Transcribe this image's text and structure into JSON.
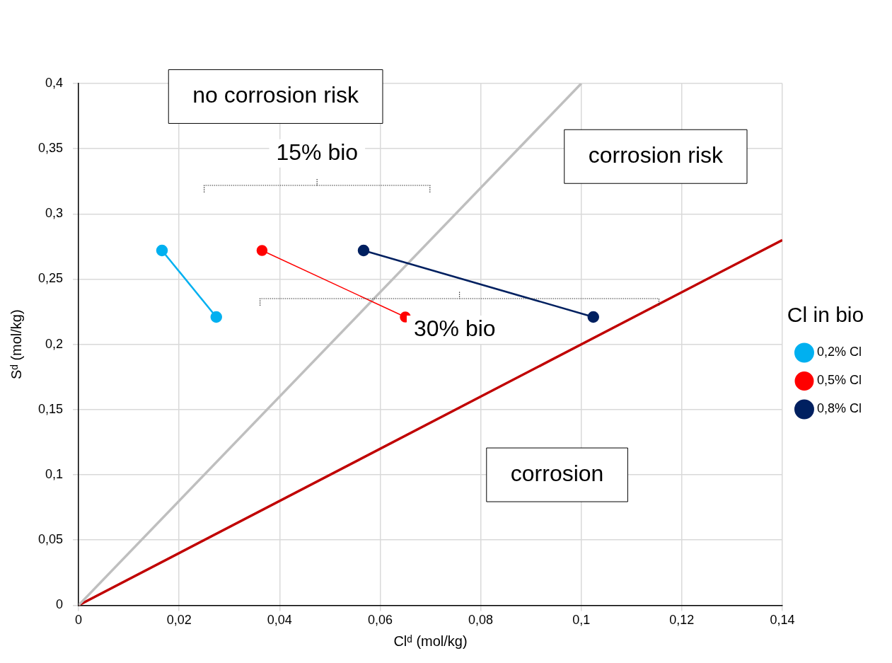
{
  "chart_data": {
    "type": "line",
    "xlabel": "Clᵈ (mol/kg)",
    "ylabel": "Sᵈ (mol/kg)",
    "legend_title": "Cl in bio",
    "legend": "right",
    "grid": true,
    "marker": "circle",
    "xlim": [
      0,
      0.14
    ],
    "xticks": [
      0,
      {
        "value": 0.02,
        "label": "0,02"
      },
      {
        "value": 0.04,
        "label": "0,04"
      },
      {
        "value": 0.06,
        "label": "0,06"
      },
      {
        "value": 0.08,
        "label": "0,08"
      },
      {
        "value": 0.1,
        "label": "0,1"
      },
      {
        "value": 0.12,
        "label": "0,12"
      },
      {
        "value": 0.14,
        "label": "0,14"
      }
    ],
    "ylim": [
      0,
      0.4
    ],
    "yticks": [
      0,
      {
        "value": 0.05,
        "label": "0,05"
      },
      {
        "value": 0.1,
        "label": "0,1"
      },
      {
        "value": 0.15,
        "label": "0,15"
      },
      {
        "value": 0.2,
        "label": "0,2"
      },
      {
        "value": 0.25,
        "label": "0,25"
      },
      {
        "value": 0.3,
        "label": "0,3"
      },
      {
        "value": 0.35,
        "label": "0,35"
      },
      {
        "value": 0.4,
        "label": "0,4"
      }
    ],
    "series": [
      {
        "name": "0,2% Cl",
        "color": "#00b0f0",
        "x": [
          0.0166,
          0.0274
        ],
        "values": [
          0.272,
          0.221
        ]
      },
      {
        "name": "0,5% Cl",
        "color": "#ff0000",
        "x": [
          0.0365,
          0.065
        ],
        "values": [
          0.272,
          0.221
        ]
      },
      {
        "name": "0,8% Cl",
        "color": "#002060",
        "x": [
          0.0567,
          0.1024
        ],
        "values": [
          0.272,
          0.221
        ]
      },
      {
        "color": "#bfbfbf",
        "marker": "none",
        "x": [
          0,
          0.1
        ],
        "values": [
          0,
          0.4
        ]
      },
      {
        "color": "#c00000",
        "marker": "none",
        "x": [
          0,
          0.14
        ],
        "values": [
          0,
          0.28
        ]
      }
    ],
    "annotations": [
      "no corrosion risk",
      "corrosion risk",
      "corrosion",
      "15% bio",
      {
        "text": "30% bio",
        "x": 0.065,
        "y": 0.221
      }
    ]
  }
}
